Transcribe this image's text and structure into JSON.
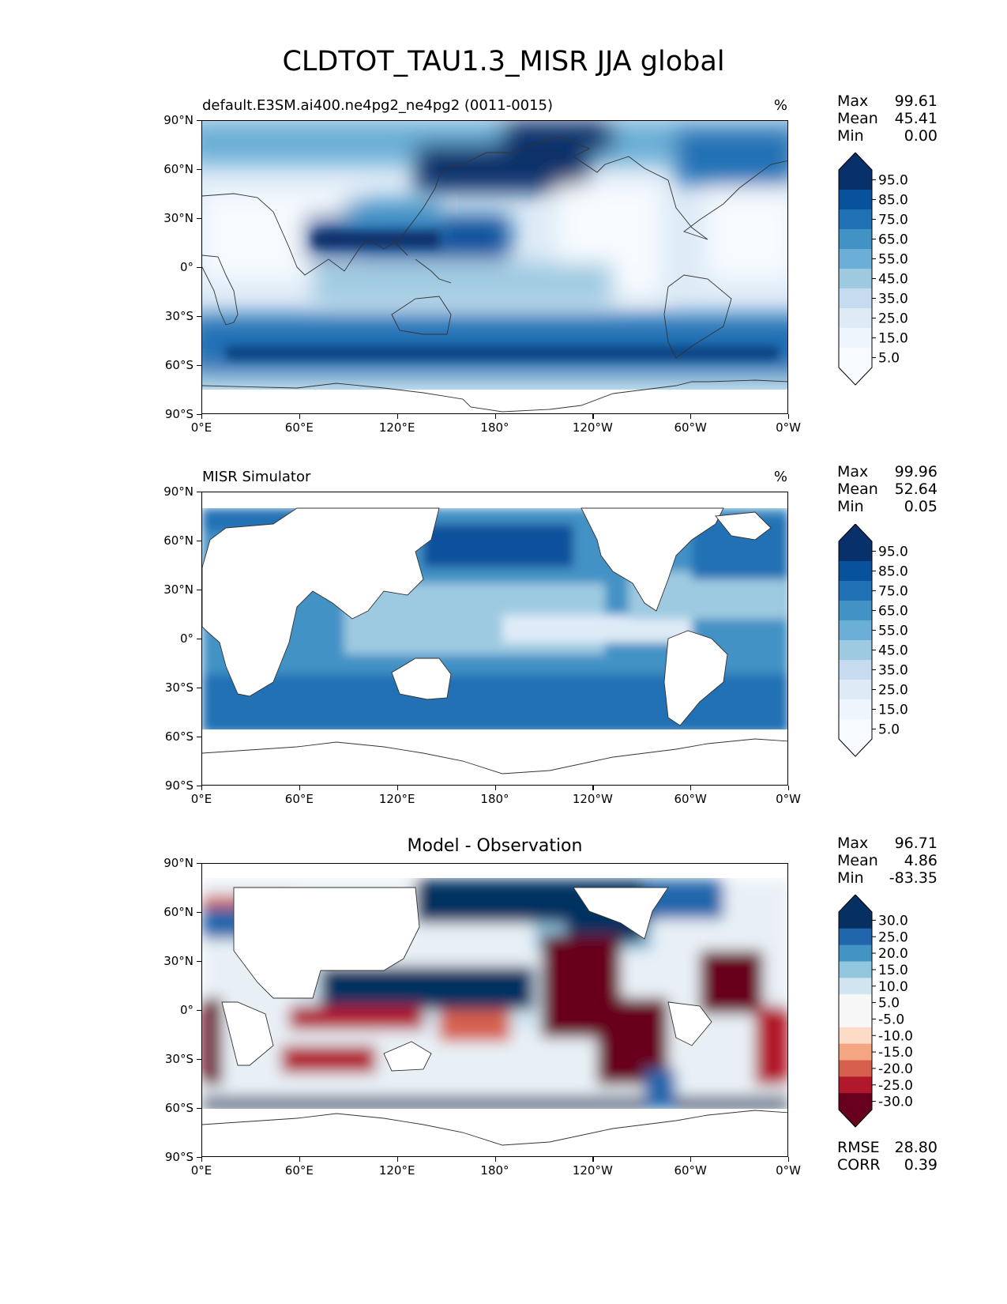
{
  "title": "CLDTOT_TAU1.3_MISR JJA global",
  "lat_labels": [
    "90°N",
    "60°N",
    "30°N",
    "0°",
    "30°S",
    "60°S",
    "90°S"
  ],
  "lon_labels": [
    "0°E",
    "60°E",
    "120°E",
    "180°",
    "120°W",
    "60°W",
    "0°W"
  ],
  "panels": [
    {
      "title_left": "default.E3SM.ai400.ne4pg2_ne4pg2 (0011-0015)",
      "title_center": "",
      "units": "%",
      "stats": [
        {
          "label": "Max",
          "value": "99.61"
        },
        {
          "label": "Mean",
          "value": "45.41"
        },
        {
          "label": "Min",
          "value": "0.00"
        }
      ],
      "colorbar": {
        "labels": [
          "95.0",
          "85.0",
          "75.0",
          "65.0",
          "55.0",
          "45.0",
          "35.0",
          "25.0",
          "15.0",
          "5.0"
        ],
        "colors": [
          "#08306b",
          "#08519c",
          "#2171b5",
          "#4292c6",
          "#6baed6",
          "#9ecae1",
          "#c6dbef",
          "#deebf7",
          "#eef5fc",
          "#f7fbff"
        ],
        "extend_top": "#08306b",
        "extend_bottom": "#f7fbff"
      },
      "metrics": []
    },
    {
      "title_left": "MISR Simulator",
      "title_center": "",
      "units": "%",
      "stats": [
        {
          "label": "Max",
          "value": "99.96"
        },
        {
          "label": "Mean",
          "value": "52.64"
        },
        {
          "label": "Min",
          "value": "0.05"
        }
      ],
      "colorbar": {
        "labels": [
          "95.0",
          "85.0",
          "75.0",
          "65.0",
          "55.0",
          "45.0",
          "35.0",
          "25.0",
          "15.0",
          "5.0"
        ],
        "colors": [
          "#08306b",
          "#08519c",
          "#2171b5",
          "#4292c6",
          "#6baed6",
          "#9ecae1",
          "#c6dbef",
          "#deebf7",
          "#eef5fc",
          "#f7fbff"
        ],
        "extend_top": "#08306b",
        "extend_bottom": "#f7fbff"
      },
      "metrics": []
    },
    {
      "title_left": "",
      "title_center": "Model - Observation",
      "units": "",
      "stats": [
        {
          "label": "Max",
          "value": "96.71"
        },
        {
          "label": "Mean",
          "value": "4.86"
        },
        {
          "label": "Min",
          "value": "-83.35"
        }
      ],
      "colorbar": {
        "labels": [
          "30.0",
          "25.0",
          "20.0",
          "15.0",
          "10.0",
          "5.0",
          "-5.0",
          "-10.0",
          "-15.0",
          "-20.0",
          "-25.0",
          "-30.0"
        ],
        "colors": [
          "#053061",
          "#2166ac",
          "#4393c3",
          "#92c5de",
          "#d1e5f0",
          "#f7f7f7",
          "#f7f7f7",
          "#fddbc7",
          "#f4a582",
          "#d6604d",
          "#b2182b",
          "#67001f"
        ],
        "extend_top": "#053061",
        "extend_bottom": "#67001f"
      },
      "metrics": [
        {
          "label": "RMSE",
          "value": "28.80"
        },
        {
          "label": "CORR",
          "value": "0.39"
        }
      ]
    }
  ]
}
